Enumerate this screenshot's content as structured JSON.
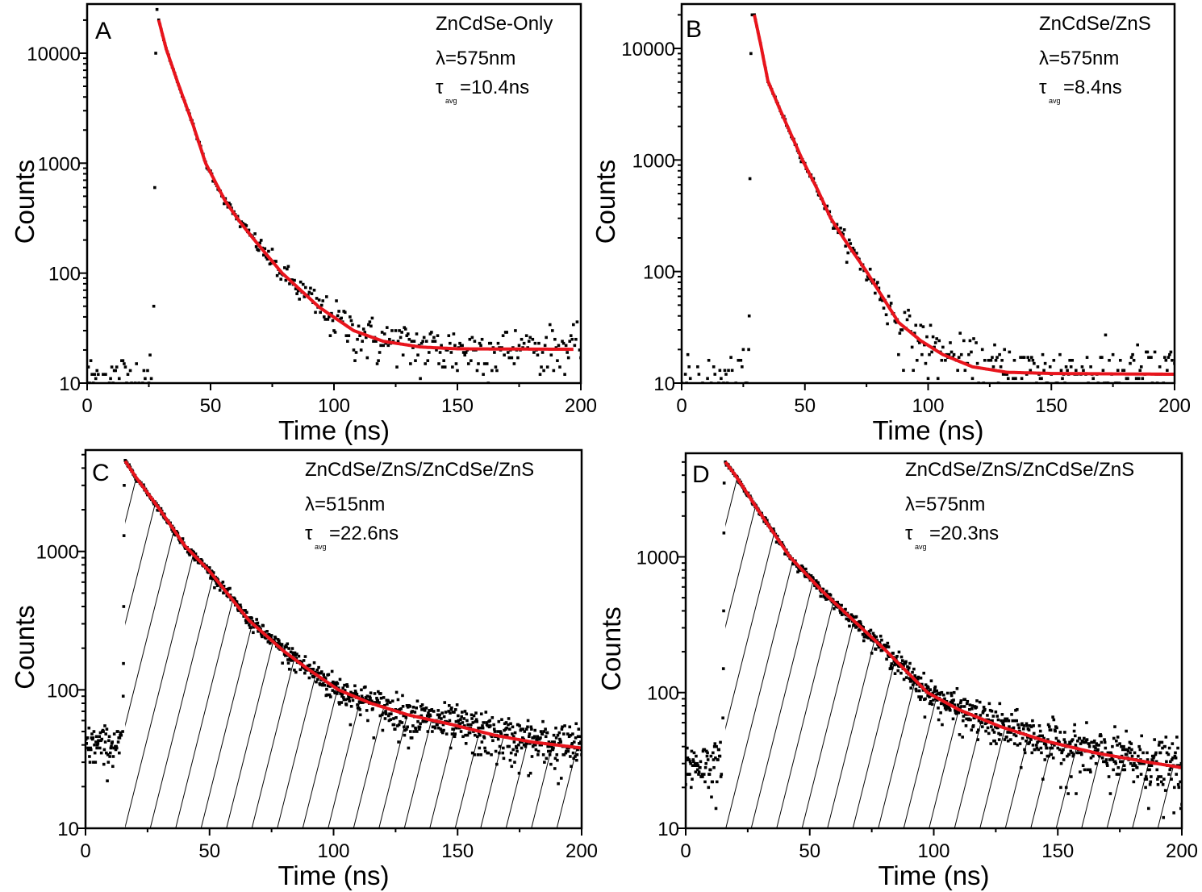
{
  "chart_data": [
    {
      "panel_label": "A",
      "type": "scatter",
      "annotation": {
        "sample": "ZnCdSe-Only",
        "wavelength": "λ=575nm",
        "tau_symbol": "τ",
        "tau_sub": "avg",
        "tau_value": "=10.4ns"
      },
      "xlabel": "Time (ns)",
      "ylabel": "Counts",
      "xlim": [
        0,
        200
      ],
      "ylim": [
        10,
        28000
      ],
      "yscale": "log",
      "xticks": [
        "0",
        "50",
        "100",
        "150",
        "200"
      ],
      "yticks": [
        "10",
        "100",
        "1000",
        "10000"
      ],
      "fit": {
        "color": "#e8141c",
        "points": [
          [
            29,
            20000
          ],
          [
            32,
            11000
          ],
          [
            36.6,
            5500
          ],
          [
            43,
            2200
          ],
          [
            48,
            1000
          ],
          [
            56,
            450
          ],
          [
            62,
            290
          ],
          [
            68.6,
            190
          ],
          [
            79,
            100
          ],
          [
            94,
            49
          ],
          [
            108,
            30
          ],
          [
            120,
            24
          ],
          [
            135,
            21.3
          ],
          [
            150,
            20.5
          ],
          [
            197,
            20.3
          ]
        ]
      },
      "data": {
        "color": "#000000",
        "baseline": 11,
        "rise_points": [
          [
            27,
            50
          ],
          [
            27.4,
            600
          ],
          [
            27.8,
            10000
          ],
          [
            28.3,
            25000
          ]
        ],
        "step": 0.5
      },
      "hatched": false
    },
    {
      "panel_label": "B",
      "type": "scatter",
      "annotation": {
        "sample": "ZnCdSe/ZnS",
        "wavelength": "λ=575nm",
        "tau_symbol": "τ",
        "tau_sub": "avg",
        "tau_value": "=8.4ns"
      },
      "xlabel": "Time (ns)",
      "ylabel": "Counts",
      "xlim": [
        0,
        200
      ],
      "ylim": [
        10,
        25000
      ],
      "yscale": "log",
      "xticks": [
        "0",
        "50",
        "100",
        "150",
        "200"
      ],
      "yticks": [
        "10",
        "100",
        "1000",
        "10000"
      ],
      "fit": {
        "color": "#e8141c",
        "points": [
          [
            29.5,
            20000
          ],
          [
            32,
            11000
          ],
          [
            35,
            5100
          ],
          [
            40,
            2800
          ],
          [
            49,
            1000
          ],
          [
            55,
            550
          ],
          [
            60.5,
            300
          ],
          [
            67,
            180
          ],
          [
            75,
            100
          ],
          [
            88,
            35
          ],
          [
            97,
            24
          ],
          [
            106,
            18
          ],
          [
            118,
            14
          ],
          [
            132,
            12.5
          ],
          [
            150,
            12.2
          ],
          [
            200,
            12
          ]
        ]
      },
      "data": {
        "color": "#000000",
        "baseline": 10,
        "rise_points": [
          [
            27.2,
            20
          ],
          [
            27.4,
            40
          ],
          [
            27.7,
            680
          ],
          [
            28.1,
            9000
          ],
          [
            28.6,
            20000
          ]
        ],
        "step": 0.5
      },
      "hatched": false
    },
    {
      "panel_label": "C",
      "type": "scatter",
      "annotation": {
        "sample": "ZnCdSe/ZnS/ZnCdSe/ZnS",
        "wavelength": "λ=515nm",
        "tau_symbol": "τ",
        "tau_sub": "avg",
        "tau_value": "=22.6ns"
      },
      "xlabel": "Time (ns)",
      "ylabel": "Counts",
      "xlim": [
        0,
        200
      ],
      "ylim": [
        10,
        5400
      ],
      "yscale": "log",
      "xticks": [
        "0",
        "50",
        "100",
        "150",
        "200"
      ],
      "yticks": [
        "10",
        "100",
        "1000"
      ],
      "fit": {
        "color": "#e8141c",
        "points": [
          [
            16,
            4500
          ],
          [
            20,
            3500
          ],
          [
            30,
            2000
          ],
          [
            40,
            1100
          ],
          [
            50,
            720
          ],
          [
            66,
            316
          ],
          [
            80,
            190
          ],
          [
            90,
            140
          ],
          [
            102,
            100
          ],
          [
            115,
            80
          ],
          [
            130,
            66
          ],
          [
            148,
            56
          ],
          [
            165,
            47
          ],
          [
            180,
            42
          ],
          [
            200,
            38
          ]
        ]
      },
      "data": {
        "color": "#000000",
        "baseline": 40,
        "rise_points": [
          [
            15,
            50
          ],
          [
            15.2,
            90
          ],
          [
            15.3,
            155
          ],
          [
            15.4,
            400
          ],
          [
            15.5,
            1300
          ],
          [
            15.6,
            3000
          ]
        ],
        "step": 0.2
      },
      "hatched": true
    },
    {
      "panel_label": "D",
      "type": "scatter",
      "annotation": {
        "sample": "ZnCdSe/ZnS/ZnCdSe/ZnS",
        "wavelength": "λ=575nm",
        "tau_symbol": "τ",
        "tau_sub": "avg",
        "tau_value": "=20.3ns"
      },
      "xlabel": "Time (ns)",
      "ylabel": "Counts",
      "xlim": [
        0,
        200
      ],
      "ylim": [
        10,
        5800
      ],
      "yscale": "log",
      "xticks": [
        "0",
        "50",
        "100",
        "150",
        "200"
      ],
      "yticks": [
        "10",
        "100",
        "1000"
      ],
      "fit": {
        "color": "#e8141c",
        "points": [
          [
            16,
            5000
          ],
          [
            20,
            4000
          ],
          [
            30,
            2100
          ],
          [
            42,
            1000
          ],
          [
            55,
            560
          ],
          [
            68,
            335
          ],
          [
            80,
            210
          ],
          [
            97.5,
            100
          ],
          [
            110,
            75
          ],
          [
            127,
            56
          ],
          [
            145,
            44
          ],
          [
            165,
            36
          ],
          [
            185,
            31
          ],
          [
            200,
            28
          ]
        ]
      },
      "data": {
        "color": "#000000",
        "baseline": 30,
        "rise_points": [
          [
            15,
            65
          ],
          [
            15.2,
            150
          ],
          [
            15.3,
            400
          ],
          [
            15.4,
            1500
          ],
          [
            15.5,
            3500
          ]
        ],
        "step": 0.2
      },
      "hatched": true
    }
  ]
}
